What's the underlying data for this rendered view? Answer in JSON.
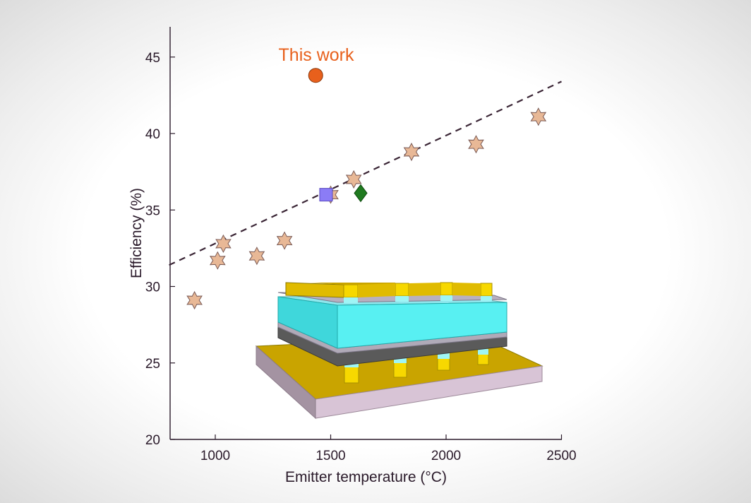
{
  "chart_data": {
    "type": "scatter",
    "xlabel": "Emitter temperature (°C)",
    "ylabel": "Efficiency (%)",
    "xlim": [
      800,
      2500
    ],
    "ylim": [
      20,
      47
    ],
    "xticks": [
      1000,
      1500,
      2000,
      2500
    ],
    "yticks": [
      20,
      25,
      30,
      35,
      40,
      45
    ],
    "grid": false,
    "annotation": "This work",
    "series": [
      {
        "marker": "star",
        "color": "#e8b896",
        "points": [
          [
            910,
            29.1
          ],
          [
            1010,
            31.7
          ],
          [
            1035,
            32.8
          ],
          [
            1180,
            32.0
          ],
          [
            1300,
            33.0
          ],
          [
            1500,
            36.0
          ],
          [
            1600,
            37.0
          ],
          [
            1850,
            38.8
          ],
          [
            2130,
            39.3
          ],
          [
            2400,
            41.1
          ]
        ]
      },
      {
        "marker": "circle",
        "color": "#e8601c",
        "points": [
          [
            1435,
            43.8
          ]
        ]
      },
      {
        "marker": "square",
        "color": "#8b7cf6",
        "points": [
          [
            1480,
            36.0
          ]
        ]
      },
      {
        "marker": "diamond",
        "color": "#1f7a1f",
        "points": [
          [
            1630,
            36.1
          ]
        ]
      }
    ],
    "trendline": {
      "style": "dashed",
      "color": "#3a2535",
      "from": [
        800,
        31.4
      ],
      "to": [
        2500,
        43.4
      ]
    }
  },
  "illustration": {
    "description_icon": "layered-device-illustration",
    "colors": {
      "gold": "#f5d000",
      "gold_dark": "#b39500",
      "cyan": "#5cf2f2",
      "gray": "#9a9a9a",
      "slab": "#d6c0d2"
    }
  }
}
